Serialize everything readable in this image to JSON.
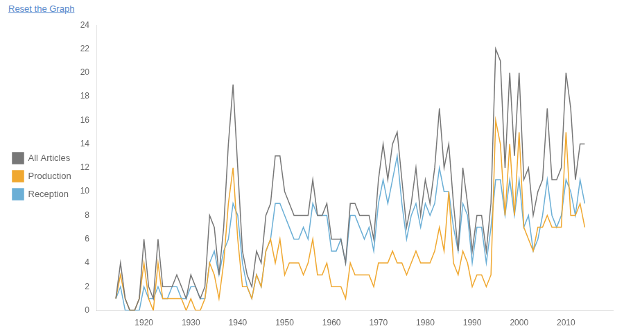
{
  "chart_data": {
    "type": "line",
    "annotations": [
      "Reset the Graph"
    ],
    "x": [
      1914,
      1915,
      1916,
      1917,
      1918,
      1919,
      1920,
      1921,
      1922,
      1923,
      1924,
      1925,
      1926,
      1927,
      1928,
      1929,
      1930,
      1931,
      1932,
      1933,
      1934,
      1935,
      1936,
      1937,
      1938,
      1939,
      1940,
      1941,
      1942,
      1943,
      1944,
      1945,
      1946,
      1947,
      1948,
      1949,
      1950,
      1951,
      1952,
      1953,
      1954,
      1955,
      1956,
      1957,
      1958,
      1959,
      1960,
      1961,
      1962,
      1963,
      1964,
      1965,
      1966,
      1967,
      1968,
      1969,
      1970,
      1971,
      1972,
      1973,
      1974,
      1975,
      1976,
      1977,
      1978,
      1979,
      1980,
      1981,
      1982,
      1983,
      1984,
      1985,
      1986,
      1987,
      1988,
      1989,
      1990,
      1991,
      1992,
      1993,
      1994,
      1995,
      1996,
      1997,
      1998,
      1999,
      2000,
      2001,
      2002,
      2003,
      2004,
      2005,
      2006,
      2007,
      2008,
      2009,
      2010,
      2011,
      2012,
      2013,
      2014
    ],
    "series": [
      {
        "name": "All Articles",
        "color": "#777777",
        "values": [
          1,
          4,
          1,
          0,
          0,
          1,
          6,
          2,
          1,
          6,
          2,
          2,
          2,
          3,
          2,
          1,
          3,
          2,
          1,
          2,
          8,
          7,
          3,
          7,
          14,
          19,
          12,
          5,
          3,
          2,
          5,
          4,
          8,
          9,
          13,
          13,
          10,
          9,
          8,
          8,
          8,
          8,
          11,
          8,
          8,
          9,
          6,
          6,
          6,
          4,
          9,
          9,
          8,
          8,
          8,
          6,
          11,
          14,
          11,
          14,
          15,
          11,
          7,
          9,
          12,
          8,
          11,
          9,
          12,
          17,
          12,
          14,
          9,
          5,
          12,
          9,
          5,
          8,
          8,
          5,
          9,
          22,
          21,
          12,
          20,
          13,
          20,
          11,
          12,
          8,
          10,
          11,
          17,
          11,
          11,
          12,
          20,
          17,
          11,
          14,
          14
        ]
      },
      {
        "name": "Production",
        "color": "#f0a830",
        "values": [
          1,
          3,
          1,
          0,
          0,
          1,
          4,
          1,
          0,
          4,
          1,
          1,
          1,
          1,
          1,
          0,
          1,
          0,
          0,
          1,
          4,
          3,
          1,
          4,
          9,
          12,
          6,
          2,
          2,
          1,
          3,
          2,
          5,
          6,
          4,
          6,
          3,
          4,
          4,
          4,
          3,
          4,
          6,
          3,
          3,
          4,
          2,
          2,
          2,
          1,
          4,
          3,
          3,
          3,
          3,
          2,
          4,
          4,
          4,
          5,
          4,
          4,
          3,
          4,
          5,
          4,
          4,
          4,
          5,
          7,
          5,
          10,
          4,
          3,
          5,
          4,
          2,
          3,
          3,
          2,
          3,
          16,
          14,
          8,
          14,
          8,
          15,
          7,
          6,
          5,
          7,
          7,
          8,
          7,
          7,
          7,
          15,
          8,
          8,
          9,
          7
        ]
      },
      {
        "name": "Reception",
        "color": "#6bafd6",
        "values": [
          1,
          2,
          0,
          0,
          0,
          0,
          2,
          1,
          1,
          2,
          1,
          1,
          2,
          2,
          1,
          1,
          2,
          2,
          1,
          1,
          4,
          5,
          3,
          5,
          6,
          9,
          8,
          4,
          2,
          1,
          3,
          2,
          5,
          6,
          9,
          9,
          8,
          7,
          6,
          6,
          7,
          6,
          9,
          8,
          8,
          8,
          5,
          5,
          6,
          4,
          8,
          8,
          7,
          6,
          7,
          5,
          9,
          11,
          9,
          11,
          13,
          9,
          6,
          8,
          9,
          7,
          9,
          8,
          9,
          12,
          10,
          10,
          7,
          5,
          9,
          8,
          4,
          7,
          7,
          4,
          7,
          11,
          11,
          8,
          11,
          8,
          11,
          7,
          8,
          5,
          6,
          8,
          11,
          8,
          7,
          8,
          11,
          10,
          8,
          11,
          9
        ]
      }
    ],
    "xlim": [
      1910,
      2020
    ],
    "xticks": [
      1920,
      1930,
      1940,
      1950,
      1960,
      1970,
      1980,
      1990,
      2000,
      2010
    ],
    "ylim": [
      0,
      24
    ],
    "yticks": [
      0,
      2,
      4,
      6,
      8,
      10,
      12,
      14,
      16,
      18,
      20,
      22,
      24
    ],
    "grid": false,
    "legend": "left"
  }
}
